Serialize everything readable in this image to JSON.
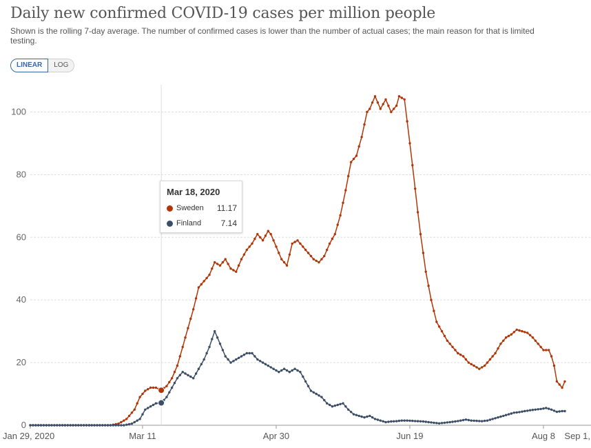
{
  "header": {
    "title": "Daily new confirmed COVID-19 cases per million people",
    "subtitle": "Shown is the rolling 7-day average. The number of confirmed cases is lower than the number of actual cases; the main reason for that is limited testing."
  },
  "scale_toggle": {
    "linear_label": "LINEAR",
    "log_label": "LOG",
    "selected": "LINEAR"
  },
  "tooltip": {
    "date": "Mar 18, 2020",
    "rows": [
      {
        "name": "Sweden",
        "value": "11.17"
      },
      {
        "name": "Finland",
        "value": "7.14"
      }
    ]
  },
  "colors": {
    "sweden": "#b13507",
    "finland": "#3c4e66",
    "grid": "#dddddd",
    "axis": "#999999"
  },
  "chart_data": {
    "type": "line",
    "title": "Daily new confirmed COVID-19 cases per million people",
    "xlabel": "",
    "ylabel": "",
    "x_unit": "days since Jan 29, 2020",
    "xlim": [
      0,
      217
    ],
    "ylim": [
      0,
      110
    ],
    "yticks": [
      0,
      20,
      40,
      60,
      80,
      100
    ],
    "xticks": [
      {
        "label": "Jan 29, 2020",
        "day": 0
      },
      {
        "label": "Mar 11",
        "day": 42
      },
      {
        "label": "Apr 30",
        "day": 92
      },
      {
        "label": "Jun 19",
        "day": 142
      },
      {
        "label": "Aug 8",
        "day": 192
      },
      {
        "label": "Sep 1,",
        "day": 216
      }
    ],
    "hover_day": 49,
    "grid": true,
    "legend": "tooltip",
    "series": [
      {
        "name": "Sweden",
        "points": [
          [
            0,
            0
          ],
          [
            30,
            0
          ],
          [
            33,
            0.5
          ],
          [
            36,
            2
          ],
          [
            39,
            5
          ],
          [
            41,
            9
          ],
          [
            43,
            11
          ],
          [
            45,
            12
          ],
          [
            47,
            12
          ],
          [
            49,
            11.2
          ],
          [
            51,
            12.5
          ],
          [
            53,
            15
          ],
          [
            55,
            19
          ],
          [
            57,
            25
          ],
          [
            59,
            31
          ],
          [
            61,
            37
          ],
          [
            63,
            44
          ],
          [
            65,
            46
          ],
          [
            67,
            48
          ],
          [
            69,
            52
          ],
          [
            71,
            51
          ],
          [
            73,
            53
          ],
          [
            75,
            50
          ],
          [
            77,
            49
          ],
          [
            79,
            53
          ],
          [
            81,
            56
          ],
          [
            83,
            58
          ],
          [
            85,
            61
          ],
          [
            87,
            59
          ],
          [
            89,
            62
          ],
          [
            90,
            61
          ],
          [
            92,
            57
          ],
          [
            94,
            53
          ],
          [
            96,
            51
          ],
          [
            98,
            58
          ],
          [
            100,
            59
          ],
          [
            102,
            57
          ],
          [
            104,
            55
          ],
          [
            106,
            53
          ],
          [
            108,
            52
          ],
          [
            110,
            54
          ],
          [
            112,
            58
          ],
          [
            114,
            61
          ],
          [
            116,
            67
          ],
          [
            118,
            75
          ],
          [
            120,
            84
          ],
          [
            122,
            86
          ],
          [
            124,
            92
          ],
          [
            126,
            100
          ],
          [
            127,
            101
          ],
          [
            129,
            105
          ],
          [
            131,
            101
          ],
          [
            133,
            104
          ],
          [
            135,
            100
          ],
          [
            137,
            102
          ],
          [
            138,
            105
          ],
          [
            140,
            104
          ],
          [
            142,
            90
          ],
          [
            143,
            83
          ],
          [
            145,
            68
          ],
          [
            146,
            61
          ],
          [
            148,
            49
          ],
          [
            150,
            40
          ],
          [
            152,
            33
          ],
          [
            154,
            30
          ],
          [
            156,
            27
          ],
          [
            158,
            25
          ],
          [
            160,
            23
          ],
          [
            162,
            22
          ],
          [
            164,
            20
          ],
          [
            166,
            19
          ],
          [
            168,
            18
          ],
          [
            170,
            19
          ],
          [
            172,
            21
          ],
          [
            174,
            23
          ],
          [
            176,
            26
          ],
          [
            178,
            28
          ],
          [
            180,
            29
          ],
          [
            182,
            30.5
          ],
          [
            184,
            30
          ],
          [
            186,
            29.5
          ],
          [
            188,
            28
          ],
          [
            190,
            26
          ],
          [
            192,
            24
          ],
          [
            194,
            24
          ],
          [
            195,
            22
          ],
          [
            196,
            19
          ],
          [
            197,
            14
          ],
          [
            199,
            12
          ],
          [
            200,
            14
          ]
        ]
      },
      {
        "name": "Finland",
        "points": [
          [
            0,
            0
          ],
          [
            35,
            0
          ],
          [
            38,
            0.5
          ],
          [
            41,
            2
          ],
          [
            43,
            5
          ],
          [
            45,
            6
          ],
          [
            47,
            7
          ],
          [
            49,
            7.1
          ],
          [
            51,
            9
          ],
          [
            53,
            12
          ],
          [
            55,
            15
          ],
          [
            57,
            17
          ],
          [
            59,
            16
          ],
          [
            61,
            15
          ],
          [
            63,
            18
          ],
          [
            65,
            21
          ],
          [
            67,
            25
          ],
          [
            69,
            30
          ],
          [
            71,
            26
          ],
          [
            73,
            22
          ],
          [
            75,
            20
          ],
          [
            77,
            21
          ],
          [
            79,
            22
          ],
          [
            81,
            23
          ],
          [
            83,
            23
          ],
          [
            85,
            21
          ],
          [
            87,
            20
          ],
          [
            89,
            19
          ],
          [
            91,
            18
          ],
          [
            93,
            17
          ],
          [
            95,
            18
          ],
          [
            97,
            17
          ],
          [
            99,
            18
          ],
          [
            101,
            17
          ],
          [
            103,
            14
          ],
          [
            105,
            11
          ],
          [
            107,
            10
          ],
          [
            109,
            9
          ],
          [
            111,
            7
          ],
          [
            113,
            6
          ],
          [
            115,
            6.5
          ],
          [
            117,
            7
          ],
          [
            119,
            5
          ],
          [
            121,
            3.5
          ],
          [
            123,
            3
          ],
          [
            125,
            2.5
          ],
          [
            127,
            3
          ],
          [
            129,
            2
          ],
          [
            131,
            1.5
          ],
          [
            133,
            1
          ],
          [
            135,
            1.2
          ],
          [
            137,
            1.3
          ],
          [
            139,
            1.5
          ],
          [
            141,
            1.5
          ],
          [
            143,
            1.4
          ],
          [
            145,
            1.3
          ],
          [
            147,
            1.2
          ],
          [
            149,
            1
          ],
          [
            151,
            0.8
          ],
          [
            153,
            0.6
          ],
          [
            155,
            0.8
          ],
          [
            157,
            1
          ],
          [
            159,
            1.2
          ],
          [
            161,
            1.5
          ],
          [
            163,
            1.8
          ],
          [
            165,
            1.5
          ],
          [
            167,
            1.4
          ],
          [
            169,
            1.3
          ],
          [
            171,
            1.5
          ],
          [
            173,
            2
          ],
          [
            175,
            2.5
          ],
          [
            177,
            3
          ],
          [
            179,
            3.5
          ],
          [
            181,
            4
          ],
          [
            183,
            4.2
          ],
          [
            185,
            4.5
          ],
          [
            187,
            4.8
          ],
          [
            189,
            5
          ],
          [
            191,
            5.2
          ],
          [
            193,
            5.5
          ],
          [
            195,
            5
          ],
          [
            197,
            4.3
          ],
          [
            199,
            4.5
          ],
          [
            200,
            4.5
          ]
        ]
      }
    ]
  }
}
